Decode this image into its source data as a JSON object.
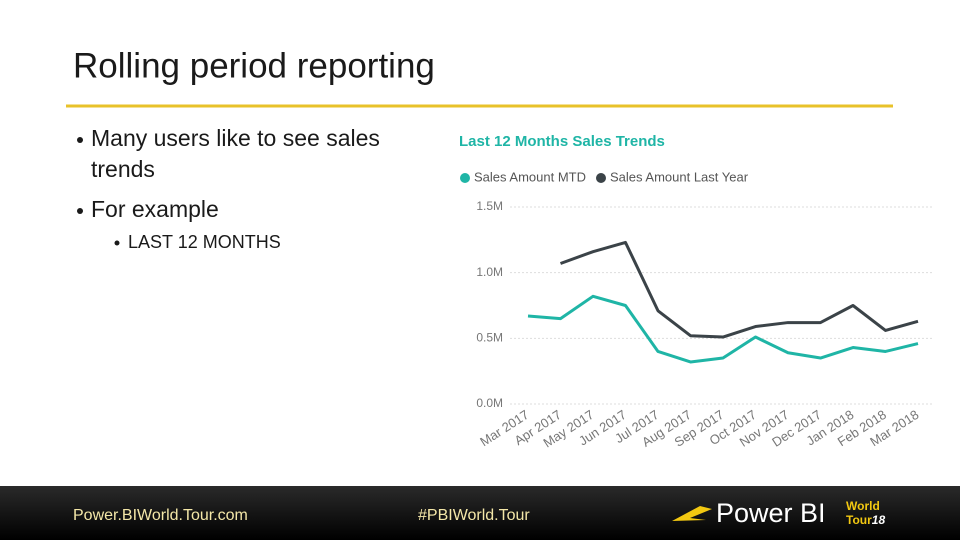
{
  "slide": {
    "title": "Rolling period reporting",
    "bullets": [
      "Many users like to see sales trends",
      "For example"
    ],
    "sub_bullets": [
      "LAST 12 MONTHS"
    ],
    "footer": {
      "site": "Power.BIWorld.Tour.com",
      "hashtag": "#PBIWorld.Tour",
      "logo": {
        "name": "Power BI",
        "world": "World",
        "tour": "Tour",
        "year": "18"
      }
    }
  },
  "chart_data": {
    "type": "line",
    "title": "Last 12 Months Sales Trends",
    "categories": [
      "Mar 2017",
      "Apr 2017",
      "May 2017",
      "Jun 2017",
      "Jul 2017",
      "Aug 2017",
      "Sep 2017",
      "Oct 2017",
      "Nov 2017",
      "Dec 2017",
      "Jan 2018",
      "Feb 2018",
      "Mar 2018"
    ],
    "series": [
      {
        "name": "Sales Amount MTD",
        "color": "#1fb5a6",
        "values": [
          670000,
          650000,
          820000,
          750000,
          400000,
          320000,
          350000,
          510000,
          390000,
          350000,
          430000,
          400000,
          460000
        ]
      },
      {
        "name": "Sales Amount Last Year",
        "color": "#3b4348",
        "values": [
          null,
          1070000,
          1160000,
          1230000,
          710000,
          520000,
          510000,
          590000,
          620000,
          620000,
          750000,
          560000,
          630000
        ]
      }
    ],
    "ylim": [
      0,
      1500000
    ],
    "yticks": [
      {
        "value": 0,
        "label": "0.0M"
      },
      {
        "value": 500000,
        "label": "0.5M"
      },
      {
        "value": 1000000,
        "label": "1.0M"
      },
      {
        "value": 1500000,
        "label": "1.5M"
      }
    ],
    "grid": true,
    "legend": "top"
  }
}
